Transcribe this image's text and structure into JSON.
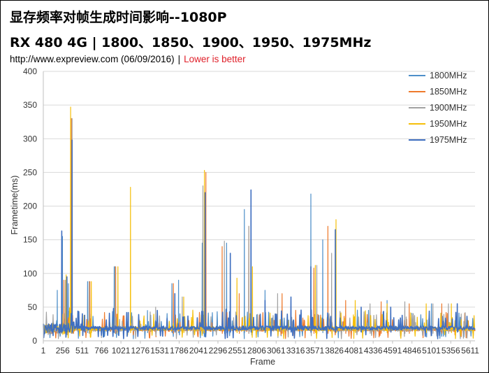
{
  "header": {
    "title_line1": "显存频率对帧生成时间影响--1080P",
    "title_line2": "RX 480 4G | 1800、1850、1900、1950、1975MHz",
    "source": "http://www.expreview.com (06/09/2016)",
    "separator": "|",
    "note": "Lower is better"
  },
  "colors": {
    "1800MHz": "#4e8fc9",
    "1850MHz": "#ee7a2c",
    "1900MHz": "#a2a2a2",
    "1950MHz": "#f5bf0a",
    "1975MHz": "#3f6fc0"
  },
  "chart_data": {
    "type": "line",
    "title": "显存频率对帧生成时间影响--1080P",
    "subtitle": "RX 480 4G | 1800、1850、1900、1950、1975MHz",
    "xlabel": "Frame",
    "ylabel": "Frametime(ms)",
    "ylim": [
      0,
      400
    ],
    "yticks": [
      0,
      50,
      100,
      150,
      200,
      250,
      300,
      350,
      400
    ],
    "xlim": [
      1,
      5840
    ],
    "xtick_labels": [
      "1",
      "256",
      "511",
      "766",
      "1021",
      "1276",
      "1531",
      "1786",
      "2041",
      "2296",
      "2551",
      "2806",
      "3061",
      "3316",
      "3571",
      "3826",
      "4081",
      "4336",
      "4591",
      "4846",
      "5101",
      "5356",
      "5611"
    ],
    "legend_position": "right",
    "grid": "horizontal",
    "series": [
      {
        "name": "1800MHz",
        "baseline": 18,
        "spikes": [
          [
            190,
            75
          ],
          [
            260,
            155
          ],
          [
            340,
            85
          ],
          [
            600,
            88
          ],
          [
            960,
            110
          ],
          [
            1410,
            45
          ],
          [
            1740,
            85
          ],
          [
            1830,
            90
          ],
          [
            2150,
            145
          ],
          [
            2480,
            145
          ],
          [
            2720,
            195
          ],
          [
            3000,
            75
          ],
          [
            3620,
            218
          ],
          [
            3780,
            150
          ],
          [
            4650,
            60
          ],
          [
            5250,
            55
          ]
        ]
      },
      {
        "name": "1850MHz",
        "baseline": 17,
        "spikes": [
          [
            280,
            90
          ],
          [
            380,
            330
          ],
          [
            630,
            88
          ],
          [
            980,
            110
          ],
          [
            1760,
            85
          ],
          [
            2200,
            250
          ],
          [
            2420,
            140
          ],
          [
            2650,
            70
          ],
          [
            2780,
            170
          ],
          [
            3230,
            70
          ],
          [
            3660,
            108
          ],
          [
            3850,
            170
          ],
          [
            4090,
            60
          ],
          [
            4570,
            58
          ],
          [
            4950,
            55
          ],
          [
            5390,
            55
          ]
        ]
      },
      {
        "name": "1900MHz",
        "baseline": 17,
        "spikes": [
          [
            300,
            90
          ],
          [
            390,
            330
          ],
          [
            620,
            88
          ],
          [
            970,
            110
          ],
          [
            1520,
            50
          ],
          [
            1880,
            65
          ],
          [
            2160,
            230
          ],
          [
            2450,
            148
          ],
          [
            2780,
            170
          ],
          [
            3170,
            70
          ],
          [
            3700,
            112
          ],
          [
            3900,
            130
          ],
          [
            4420,
            55
          ],
          [
            4890,
            58
          ],
          [
            5270,
            55
          ],
          [
            5480,
            55
          ]
        ]
      },
      {
        "name": "1950MHz",
        "baseline": 18,
        "spikes": [
          [
            310,
            98
          ],
          [
            370,
            347
          ],
          [
            650,
            88
          ],
          [
            1010,
            110
          ],
          [
            1180,
            228
          ],
          [
            1900,
            65
          ],
          [
            2180,
            253
          ],
          [
            2620,
            93
          ],
          [
            2830,
            110
          ],
          [
            3680,
            112
          ],
          [
            3960,
            180
          ],
          [
            4220,
            60
          ],
          [
            4650,
            55
          ],
          [
            5180,
            55
          ],
          [
            5520,
            55
          ]
        ]
      },
      {
        "name": "1975MHz",
        "baseline": 19,
        "spikes": [
          [
            250,
            163
          ],
          [
            320,
            95
          ],
          [
            390,
            298
          ],
          [
            560,
            38
          ],
          [
            950,
            48
          ],
          [
            1150,
            42
          ],
          [
            1780,
            70
          ],
          [
            2190,
            220
          ],
          [
            2530,
            130
          ],
          [
            2810,
            224
          ],
          [
            3000,
            60
          ],
          [
            3350,
            65
          ],
          [
            3620,
            110
          ],
          [
            3950,
            165
          ],
          [
            4300,
            50
          ],
          [
            4700,
            50
          ],
          [
            5600,
            55
          ]
        ]
      }
    ]
  }
}
